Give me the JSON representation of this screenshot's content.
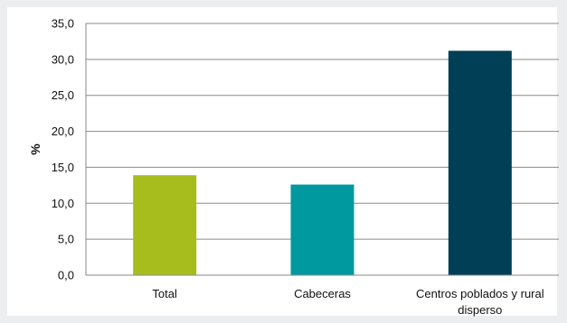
{
  "chart_data": {
    "type": "bar",
    "categories": [
      "Total",
      "Cabeceras",
      "Centros poblados y rural disperso"
    ],
    "category_lines": [
      [
        "Total"
      ],
      [
        "Cabeceras"
      ],
      [
        "Centros poblados y rural",
        "disperso"
      ]
    ],
    "values": [
      13.9,
      12.6,
      31.2
    ],
    "colors": [
      "#a7bd1e",
      "#0099a0",
      "#003f55"
    ],
    "ylabel": "%",
    "ylim": [
      0,
      35
    ],
    "yticks": [
      "0,0",
      "5,0",
      "10,0",
      "15,0",
      "20,0",
      "25,0",
      "30,0",
      "35,0"
    ],
    "grid": true,
    "legend": "none"
  }
}
